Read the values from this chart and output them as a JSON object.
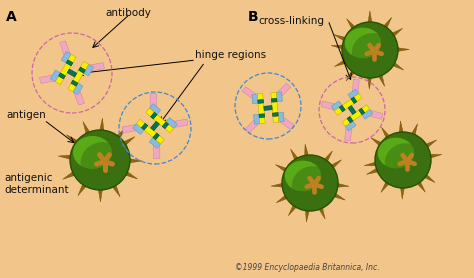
{
  "bg_color": "#f2c68a",
  "label_A": "A",
  "label_B": "B",
  "label_antibody": "antibody",
  "label_cross_linking": "cross-linking",
  "label_hinge_regions": "hinge regions",
  "label_antigen": "antigen",
  "label_antigenic_det": "antigenic\ndeterminant",
  "label_copyright": "©1999 Encyclopaedia Britannica, Inc.",
  "yellow_color": "#f5f000",
  "blue_color": "#88bbdd",
  "pink_color": "#f0a8c0",
  "teal_color": "#007755",
  "brown_spike": "#8B6610",
  "green_outer": "#4a8010",
  "green_mid": "#6aaa18",
  "green_light": "#90cc30",
  "orange_spot": "#c08830",
  "dashed_color_pink": "#cc66aa",
  "dashed_color_blue": "#4488cc",
  "text_color": "#111111"
}
